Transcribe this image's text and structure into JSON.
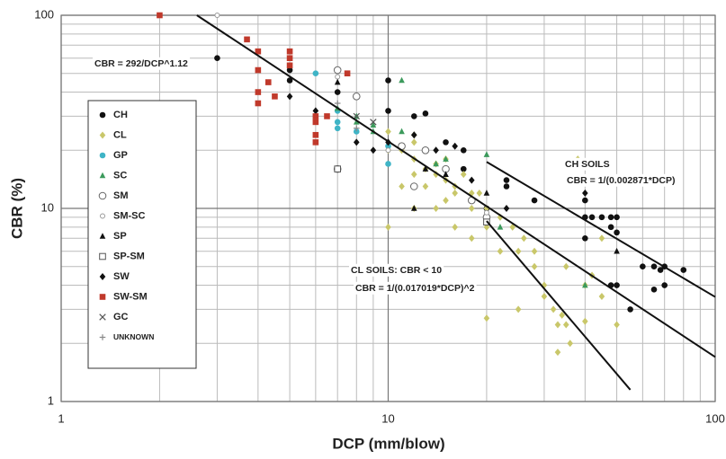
{
  "chart_data": {
    "type": "scatter",
    "xlabel": "DCP (mm/blow)",
    "ylabel": "CBR (%)",
    "log_x": true,
    "log_y": true,
    "grid": true,
    "xlim": [
      1,
      100
    ],
    "ylim": [
      1,
      100
    ],
    "xticks": [
      1,
      10,
      100
    ],
    "yticks": [
      1,
      10,
      100
    ],
    "xminor": [
      2,
      3,
      4,
      5,
      6,
      7,
      8,
      9,
      20,
      30,
      40,
      50,
      60,
      70,
      80,
      90
    ],
    "yminor": [
      2,
      3,
      4,
      5,
      6,
      7,
      8,
      9,
      20,
      30,
      40,
      50,
      60,
      70,
      80,
      90
    ],
    "legend": "upper left",
    "series": [
      {
        "name": "CH",
        "color": "#111111",
        "marker": "circle",
        "x": [
          3,
          5,
          5,
          7,
          8,
          10,
          10,
          12,
          13,
          15,
          17,
          17,
          20,
          23,
          23,
          28,
          40,
          40,
          42,
          40,
          45,
          48,
          50,
          48,
          50,
          50,
          55,
          48,
          60,
          65,
          70,
          65,
          70,
          80,
          68
        ],
        "y": [
          60,
          52,
          46,
          40,
          38,
          46,
          32,
          30,
          31,
          22,
          20,
          16,
          10,
          14,
          13,
          11,
          11,
          9,
          9,
          7,
          9,
          9,
          9,
          8,
          7.5,
          4,
          3,
          4,
          5,
          5,
          5,
          3.8,
          4,
          4.8,
          4.8
        ]
      },
      {
        "name": "CL",
        "color": "#c9c76a",
        "marker": "diamond",
        "x": [
          10,
          10,
          10,
          11,
          12,
          12,
          12,
          13,
          13,
          14,
          14,
          15,
          15,
          16,
          16,
          17,
          18,
          18,
          19,
          20,
          20,
          20,
          22,
          22,
          24,
          25,
          26,
          28,
          30,
          30,
          32,
          33,
          35,
          34,
          36,
          33,
          40,
          40,
          45,
          50,
          11,
          12,
          14,
          16,
          18,
          25,
          28,
          35,
          42,
          38,
          45,
          13,
          15,
          12
        ],
        "y": [
          25,
          20,
          8,
          20,
          24,
          22,
          18,
          16,
          20,
          17,
          15,
          18,
          14,
          13,
          12,
          15,
          12,
          10,
          12,
          10,
          8,
          2.7,
          9,
          6,
          8,
          3,
          7,
          5,
          4,
          3.5,
          3,
          2.5,
          2.5,
          2.8,
          2,
          1.8,
          4,
          2.6,
          3.5,
          2.5,
          13,
          10,
          10,
          8,
          7,
          6,
          6,
          5,
          4.5,
          18,
          7,
          13,
          11,
          15
        ]
      },
      {
        "name": "GP",
        "color": "#3fb4c6",
        "marker": "circle",
        "x": [
          6,
          6,
          7,
          7,
          7,
          8,
          10,
          10
        ],
        "y": [
          50,
          30,
          32,
          28,
          26,
          25,
          17,
          21
        ]
      },
      {
        "name": "SC",
        "color": "#3c9a5c",
        "marker": "triangle",
        "x": [
          7,
          8,
          8,
          9,
          9,
          11,
          11,
          14,
          15,
          20,
          22,
          40
        ],
        "y": [
          33,
          30,
          28,
          27,
          25,
          46,
          25,
          17,
          18,
          19,
          8,
          4
        ]
      },
      {
        "name": "SM",
        "color": "#666666",
        "marker": "open-circle",
        "x": [
          7,
          7,
          8,
          11,
          12,
          13,
          18,
          20,
          15
        ],
        "y": [
          52,
          16,
          38,
          21,
          13,
          20,
          11,
          9,
          16
        ]
      },
      {
        "name": "SM-SC",
        "color": "#999999",
        "marker": "small-open-circle",
        "x": [
          3,
          7,
          10,
          20
        ],
        "y": [
          100,
          48,
          20,
          9.5
        ]
      },
      {
        "name": "SP",
        "color": "#111111",
        "marker": "triangle",
        "x": [
          7,
          12,
          13,
          15,
          20,
          50
        ],
        "y": [
          45,
          10,
          16,
          15,
          12,
          6
        ]
      },
      {
        "name": "SP-SM",
        "color": "#555555",
        "marker": "open-square",
        "x": [
          7,
          20
        ],
        "y": [
          16,
          8.5
        ]
      },
      {
        "name": "SW",
        "color": "#111111",
        "marker": "diamond",
        "x": [
          5,
          6,
          8,
          9,
          10,
          12,
          14,
          16,
          18,
          23,
          40
        ],
        "y": [
          38,
          32,
          22,
          20,
          22,
          24,
          20,
          21,
          14,
          10,
          12
        ]
      },
      {
        "name": "SW-SM",
        "color": "#c0392b",
        "marker": "square",
        "x": [
          2,
          3.7,
          4,
          4,
          4,
          4,
          4.3,
          4.5,
          5,
          5,
          5,
          6,
          6,
          6,
          6,
          6.5,
          7.5
        ],
        "y": [
          100,
          75,
          65,
          52,
          40,
          35,
          45,
          38,
          65,
          60,
          55,
          30,
          28,
          24,
          22,
          30,
          50
        ]
      },
      {
        "name": "GC",
        "color": "#555555",
        "marker": "x",
        "x": [
          8,
          9
        ],
        "y": [
          30,
          28
        ]
      },
      {
        "name": "UNKNOWN",
        "color": "#888888",
        "marker": "plus",
        "x": [
          7,
          8
        ],
        "y": [
          35,
          26
        ]
      }
    ],
    "trend_lines": [
      {
        "x": [
          2.6,
          100
        ],
        "y": [
          100,
          1.7
        ]
      },
      {
        "x": [
          20,
          100
        ],
        "y": [
          17.4,
          3.48
        ]
      },
      {
        "x": [
          20,
          55
        ],
        "y": [
          8.6,
          1.15
        ]
      }
    ],
    "annotations": [
      "CBR = 292/DCP^1.12",
      "CH SOILS",
      "CBR = 1/(0.002871*DCP)",
      "CL SOILS: CBR < 10",
      "CBR = 1/(0.017019*DCP)^2"
    ]
  }
}
